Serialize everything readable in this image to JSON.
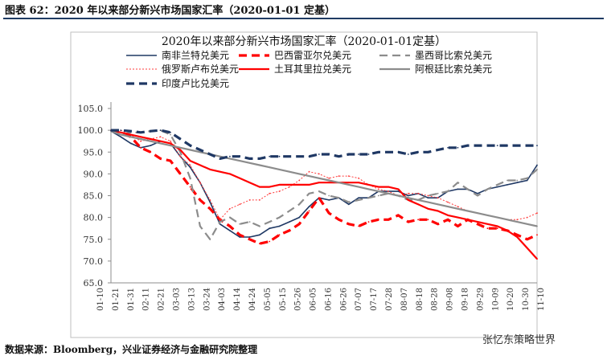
{
  "page": {
    "caption": "图表 62：2020 年以来部分新兴市场国家汇率（2020-01-01 定基）",
    "source": "数据来源：Bloomberg，兴业证券经济与金融研究院整理",
    "watermark": "张忆东策略世界"
  },
  "chart_data": {
    "type": "line",
    "title": "2020年以来部分新兴市场国家汇率（2020-01-01定基）",
    "xlabel": "",
    "ylabel": "",
    "ylim": [
      65,
      105
    ],
    "yticks": [
      "105.0",
      "100.0",
      "95.0",
      "90.0",
      "85.0",
      "80.0",
      "75.0",
      "70.0",
      "65.0"
    ],
    "x": [
      "01-10",
      "01-17",
      "01-24",
      "01-31",
      "02-07",
      "02-14",
      "02-21",
      "02-28",
      "03-06",
      "03-13",
      "03-20",
      "03-27",
      "04-03",
      "04-10",
      "04-17",
      "04-24",
      "05-01",
      "05-08",
      "05-15",
      "05-22",
      "05-29",
      "06-05",
      "06-12",
      "06-19",
      "06-26",
      "07-03",
      "07-10",
      "07-17",
      "07-24",
      "07-31",
      "08-07",
      "08-14",
      "08-21",
      "08-28",
      "09-04",
      "09-11",
      "09-18",
      "09-25",
      "10-02",
      "10-09",
      "10-16",
      "10-23",
      "10-30",
      "11-06"
    ],
    "xticks": [
      "01-10",
      "01-21",
      "01-31",
      "02-11",
      "02-21",
      "03-03",
      "03-13",
      "03-24",
      "04-03",
      "04-14",
      "04-24",
      "05-05",
      "05-15",
      "05-26",
      "06-05",
      "06-16",
      "06-26",
      "07-07",
      "07-17",
      "07-28",
      "08-07",
      "08-18",
      "08-28",
      "09-08",
      "09-18",
      "09-29",
      "10-09",
      "10-20",
      "10-30",
      "11-10"
    ],
    "series": [
      {
        "name": "南非兰特兑美元",
        "color": "#1f3864",
        "style": "solid",
        "width": 1.6,
        "values": [
          99.8,
          98.5,
          97.0,
          96.0,
          96.5,
          97.5,
          97.0,
          94.0,
          91.5,
          88.0,
          83.5,
          78.5,
          77.0,
          75.5,
          75.5,
          76.0,
          77.5,
          78.0,
          79.0,
          80.0,
          82.5,
          84.5,
          84.0,
          84.5,
          83.0,
          84.5,
          84.5,
          86.0,
          86.0,
          86.0,
          85.0,
          85.5,
          84.5,
          84.5,
          86.0,
          86.5,
          86.5,
          85.5,
          86.5,
          87.0,
          87.5,
          88.0,
          88.5,
          92.0
        ]
      },
      {
        "name": "巴西雷亚尔兑美元",
        "color": "#ff0000",
        "style": "dash",
        "width": 3.2,
        "values": [
          100.0,
          99.5,
          98.5,
          96.0,
          95.0,
          93.5,
          93.0,
          90.0,
          87.0,
          84.0,
          82.0,
          79.5,
          78.0,
          76.0,
          75.0,
          74.0,
          74.5,
          76.0,
          77.0,
          78.5,
          81.5,
          84.5,
          81.0,
          79.5,
          78.5,
          78.0,
          79.0,
          79.5,
          79.5,
          80.5,
          79.0,
          79.5,
          79.5,
          78.5,
          79.5,
          78.0,
          79.5,
          78.5,
          77.5,
          77.5,
          77.0,
          76.0,
          75.0,
          76.0
        ]
      },
      {
        "name": "墨西哥比索兑美元",
        "color": "#8c8c8c",
        "style": "dash",
        "width": 2.2,
        "values": [
          100.0,
          99.0,
          99.5,
          99.5,
          99.8,
          100.0,
          99.0,
          95.0,
          89.0,
          78.0,
          75.0,
          79.0,
          80.0,
          78.5,
          79.0,
          78.0,
          79.0,
          80.0,
          81.5,
          83.0,
          85.5,
          86.0,
          85.0,
          84.5,
          83.5,
          84.0,
          84.5,
          85.0,
          85.5,
          85.0,
          84.0,
          84.0,
          85.0,
          85.5,
          86.0,
          88.0,
          86.5,
          85.0,
          86.5,
          87.5,
          88.5,
          88.5,
          89.0,
          91.0
        ]
      },
      {
        "name": "俄罗斯卢布兑美元",
        "color": "#ff3b3b",
        "style": "dotted",
        "width": 1.0,
        "values": [
          100.0,
          100.0,
          99.0,
          97.5,
          98.0,
          98.5,
          97.5,
          94.0,
          92.0,
          88.0,
          84.0,
          79.5,
          82.0,
          83.0,
          84.0,
          84.0,
          85.5,
          86.0,
          87.0,
          88.5,
          90.5,
          90.0,
          89.0,
          89.5,
          89.5,
          89.0,
          87.5,
          86.5,
          86.0,
          85.0,
          85.5,
          85.5,
          85.0,
          84.5,
          83.5,
          82.5,
          81.5,
          81.0,
          80.5,
          80.0,
          79.5,
          79.5,
          80.0,
          81.0
        ]
      },
      {
        "name": "土耳其里拉兑美元",
        "color": "#ff0000",
        "style": "solid",
        "width": 2.2,
        "values": [
          100.0,
          99.5,
          99.0,
          98.5,
          98.0,
          97.5,
          97.0,
          95.5,
          93.0,
          92.0,
          91.0,
          90.5,
          90.0,
          89.0,
          88.0,
          87.0,
          87.0,
          87.5,
          87.5,
          87.5,
          87.5,
          88.0,
          88.0,
          88.0,
          88.0,
          88.0,
          87.5,
          87.0,
          87.0,
          86.5,
          84.0,
          83.0,
          82.0,
          81.5,
          80.5,
          80.0,
          79.5,
          79.0,
          78.5,
          78.0,
          77.0,
          75.5,
          73.0,
          70.5
        ]
      },
      {
        "name": "阿根廷比索兑美元",
        "color": "#8c8c8c",
        "style": "solid",
        "width": 2.2,
        "values": [
          99.8,
          99.0,
          98.5,
          98.0,
          97.5,
          97.0,
          96.5,
          96.0,
          95.5,
          95.0,
          94.5,
          94.0,
          93.5,
          93.0,
          92.5,
          92.0,
          91.5,
          91.0,
          90.5,
          90.0,
          89.5,
          89.0,
          88.5,
          88.0,
          87.5,
          87.0,
          86.5,
          86.0,
          85.5,
          85.0,
          84.5,
          84.0,
          83.5,
          83.0,
          82.5,
          82.0,
          81.5,
          81.0,
          80.5,
          80.0,
          79.5,
          79.0,
          78.5,
          78.0
        ]
      },
      {
        "name": "印度卢比兑美元",
        "color": "#1f3864",
        "style": "dash",
        "width": 3.2,
        "values": [
          100.0,
          100.0,
          99.8,
          99.5,
          99.8,
          100.0,
          99.5,
          98.0,
          96.5,
          95.5,
          94.5,
          93.5,
          94.0,
          94.0,
          93.5,
          93.5,
          94.0,
          94.0,
          94.0,
          94.0,
          94.0,
          94.5,
          94.5,
          94.0,
          94.5,
          94.5,
          94.5,
          95.0,
          95.0,
          95.0,
          94.5,
          95.0,
          95.0,
          95.5,
          96.0,
          96.0,
          96.5,
          96.5,
          96.5,
          96.5,
          96.5,
          96.5,
          96.5,
          96.5
        ]
      }
    ]
  }
}
